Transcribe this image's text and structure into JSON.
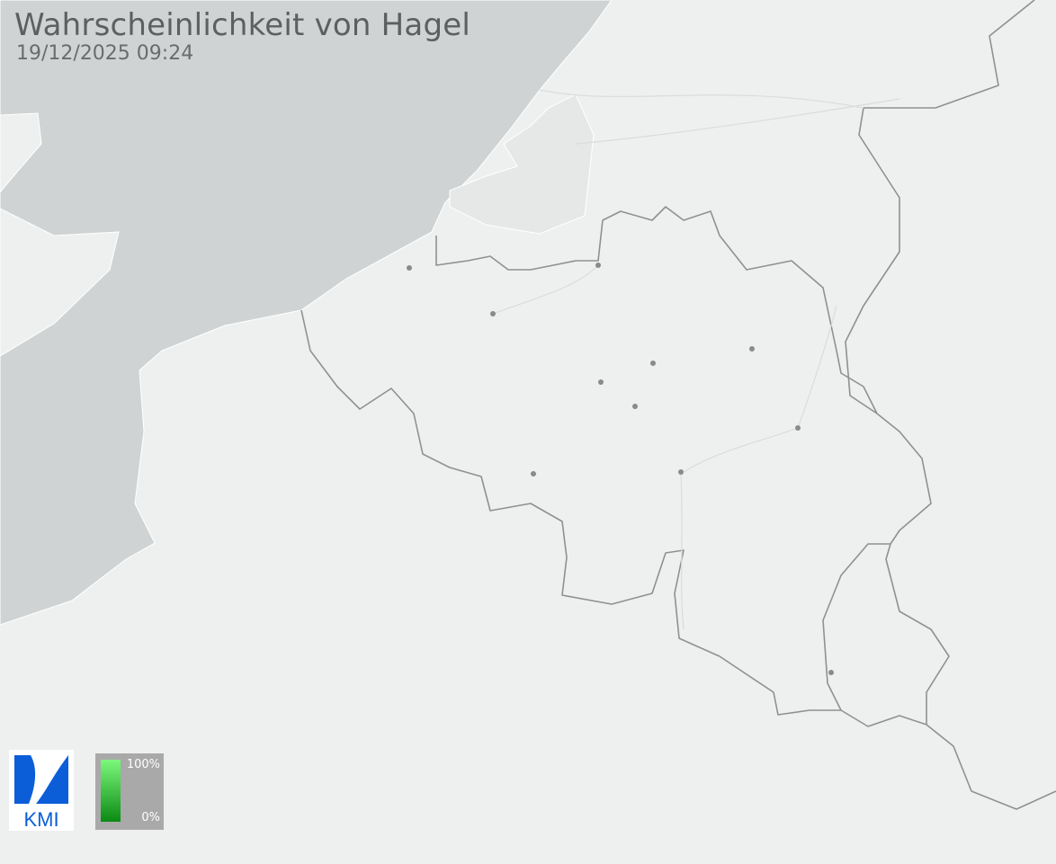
{
  "header": {
    "title": "Wahrscheinlichkeit von Hagel",
    "timestamp": "19/12/2025 09:24"
  },
  "logo": {
    "text": "KMI",
    "color": "#0b5ed8"
  },
  "legend": {
    "max_label": "100%",
    "min_label": "0%",
    "gradient_colors": [
      "#7cf97c",
      "#0b8a14"
    ]
  },
  "map": {
    "land_color": "#eef0ef",
    "sea_color": "#d0d3d4",
    "border_color": "#8e9192",
    "city_dot_color": "#8a8a8a"
  }
}
